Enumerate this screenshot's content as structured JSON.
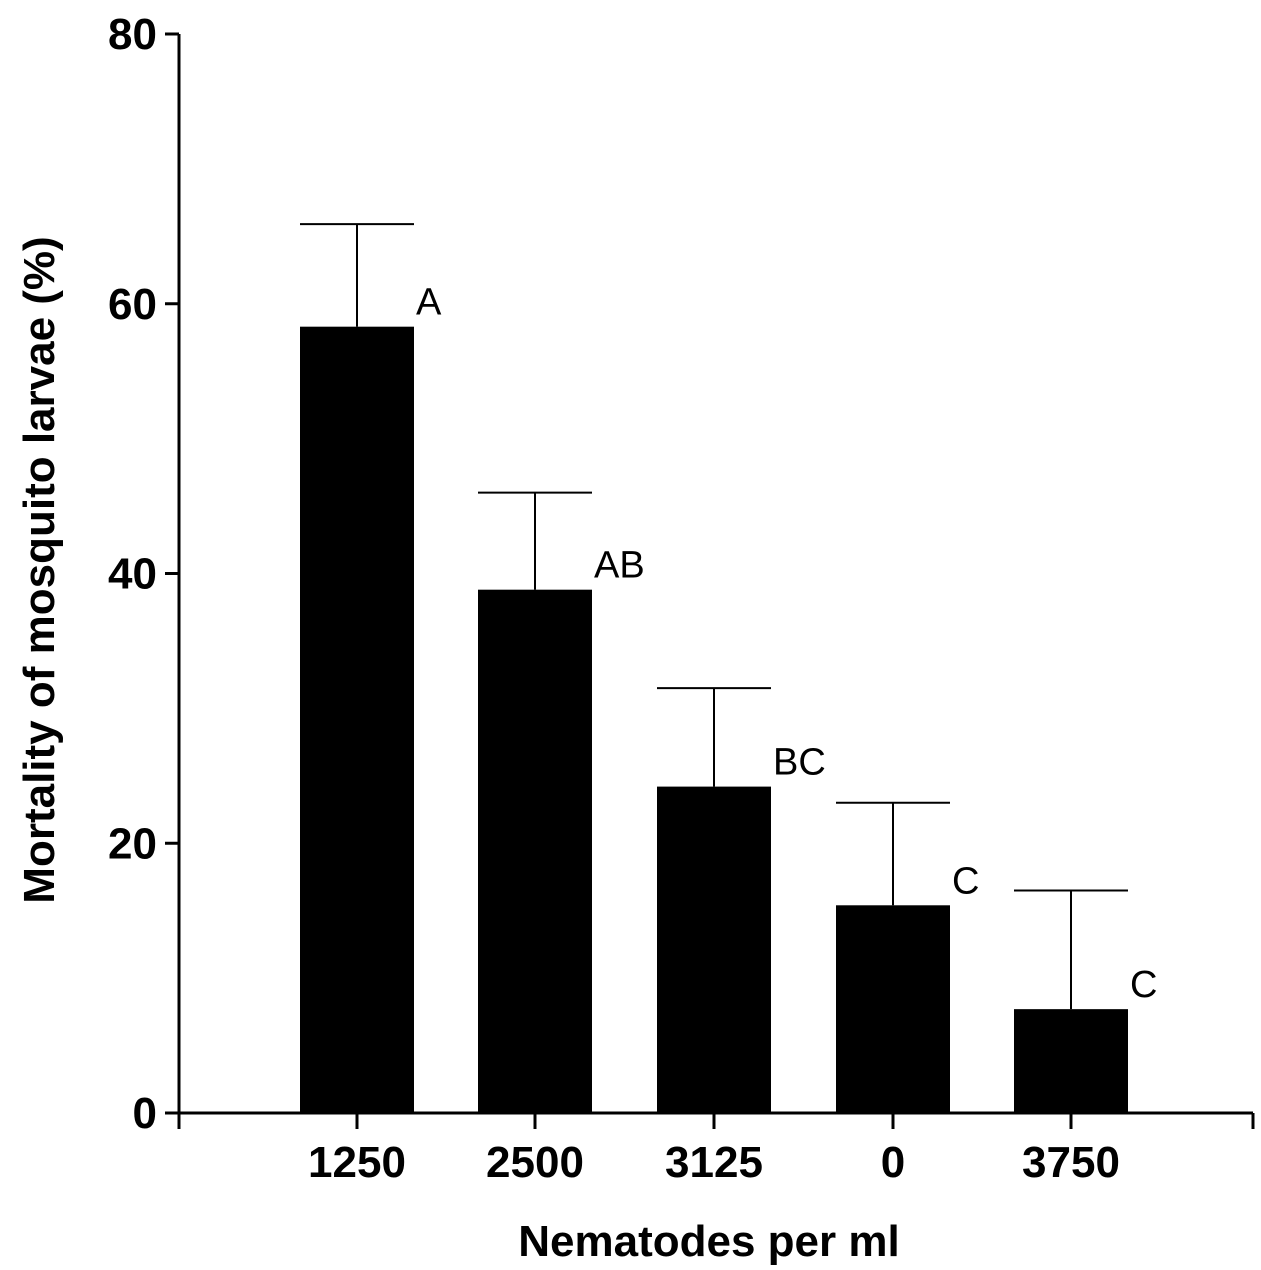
{
  "chart_data": {
    "type": "bar",
    "xlabel": "Nematodes per ml",
    "ylabel": "Mortality of mosquito larvae (%)",
    "categories": [
      "1250",
      "2500",
      "3125",
      "0",
      "3750"
    ],
    "values": [
      58.3,
      38.8,
      24.2,
      15.4,
      7.7
    ],
    "error_upper": [
      65.9,
      46.0,
      31.5,
      23.0,
      16.5
    ],
    "significance_labels": [
      "A",
      "AB",
      "BC",
      "C",
      "C"
    ],
    "ylim": [
      0,
      80
    ],
    "yticks": [
      0,
      20,
      40,
      60,
      80
    ],
    "grid": false,
    "legend": "none",
    "bar_color": "#000000"
  }
}
